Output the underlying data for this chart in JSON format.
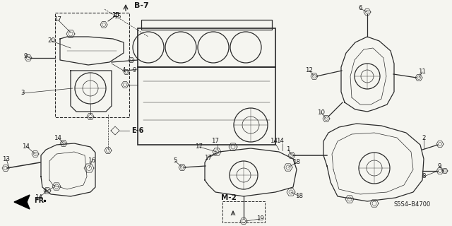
{
  "bg_color": "#f5f5f0",
  "line_color": "#2a2a2a",
  "text_color": "#1a1a1a",
  "ref_code": "S5S4–B4700",
  "fig_width": 6.4,
  "fig_height": 3.2,
  "dpi": 100
}
